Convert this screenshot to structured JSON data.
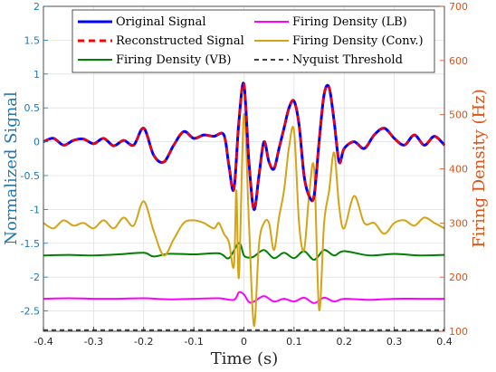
{
  "chart_data": {
    "type": "line",
    "xlabel": "Time (s)",
    "ylabel_left": "Normalized Signal",
    "ylabel_right": "Firing Density (Hz)",
    "xlim": [
      -0.4,
      0.4
    ],
    "ylim_left": [
      -2.8,
      2
    ],
    "ylim_right": [
      100,
      700
    ],
    "x_ticks": [
      "-0.4",
      "-0.3",
      "-0.2",
      "-0.1",
      "0",
      "0.1",
      "0.2",
      "0.3",
      "0.4"
    ],
    "y_ticks_left": [
      "2",
      "1.5",
      "1",
      "0.5",
      "0",
      "-0.5",
      "-1",
      "-1.5",
      "-2",
      "-2.5"
    ],
    "y_ticks_right": [
      "700",
      "600",
      "500",
      "400",
      "300",
      "200",
      "100"
    ],
    "grid": true,
    "legend_position": "top",
    "colors": {
      "left_axis": "#1f77b4",
      "right_axis": "#d9541a",
      "original": "#0000ff",
      "reconstructed": "#ff0000",
      "vb": "#008000",
      "lb": "#ff00ff",
      "conv": "#d4a316",
      "nyquist": "#404040"
    },
    "series": [
      {
        "name": "Original Signal",
        "axis": "left",
        "x": [
          -0.4,
          -0.38,
          -0.36,
          -0.34,
          -0.32,
          -0.3,
          -0.28,
          -0.26,
          -0.24,
          -0.22,
          -0.2,
          -0.18,
          -0.16,
          -0.14,
          -0.12,
          -0.1,
          -0.08,
          -0.06,
          -0.04,
          -0.03,
          -0.02,
          -0.01,
          0,
          0.01,
          0.02,
          0.03,
          0.04,
          0.05,
          0.06,
          0.07,
          0.08,
          0.09,
          0.1,
          0.11,
          0.12,
          0.13,
          0.14,
          0.15,
          0.16,
          0.17,
          0.18,
          0.19,
          0.2,
          0.22,
          0.24,
          0.26,
          0.28,
          0.3,
          0.32,
          0.34,
          0.36,
          0.38,
          0.4
        ],
        "y": [
          0,
          0.05,
          -0.05,
          0.02,
          0.04,
          -0.03,
          0.05,
          -0.06,
          0.02,
          -0.05,
          0.2,
          -0.2,
          -0.3,
          -0.05,
          0.15,
          0.05,
          0.1,
          0.08,
          0.1,
          -0.35,
          -0.7,
          0.3,
          0.85,
          -0.3,
          -1.0,
          -0.5,
          0,
          -0.3,
          -0.4,
          -0.1,
          0.2,
          0.5,
          0.6,
          0.25,
          -0.5,
          -0.8,
          -0.8,
          0,
          0.7,
          0.8,
          0.3,
          -0.3,
          -0.1,
          0,
          -0.1,
          0.1,
          0.2,
          0.05,
          -0.05,
          0.1,
          -0.05,
          0.08,
          -0.05
        ]
      },
      {
        "name": "Reconstructed Signal",
        "axis": "left",
        "x": [
          -0.4,
          -0.38,
          -0.36,
          -0.34,
          -0.32,
          -0.3,
          -0.28,
          -0.26,
          -0.24,
          -0.22,
          -0.2,
          -0.18,
          -0.16,
          -0.14,
          -0.12,
          -0.1,
          -0.08,
          -0.06,
          -0.04,
          -0.03,
          -0.02,
          -0.01,
          0,
          0.01,
          0.02,
          0.03,
          0.04,
          0.05,
          0.06,
          0.07,
          0.08,
          0.09,
          0.1,
          0.11,
          0.12,
          0.13,
          0.14,
          0.15,
          0.16,
          0.17,
          0.18,
          0.19,
          0.2,
          0.22,
          0.24,
          0.26,
          0.28,
          0.3,
          0.32,
          0.34,
          0.36,
          0.38,
          0.4
        ],
        "y": [
          0,
          0.05,
          -0.05,
          0.02,
          0.04,
          -0.03,
          0.05,
          -0.06,
          0.02,
          -0.05,
          0.2,
          -0.2,
          -0.3,
          -0.05,
          0.15,
          0.05,
          0.1,
          0.08,
          0.1,
          -0.35,
          -0.7,
          0.3,
          0.85,
          -0.3,
          -1.0,
          -0.5,
          0,
          -0.3,
          -0.4,
          -0.1,
          0.2,
          0.5,
          0.6,
          0.25,
          -0.5,
          -0.8,
          -0.8,
          0,
          0.7,
          0.8,
          0.3,
          -0.3,
          -0.1,
          0,
          -0.1,
          0.1,
          0.2,
          0.05,
          -0.05,
          0.1,
          -0.05,
          0.08,
          -0.05
        ]
      },
      {
        "name": "Firing Density (VB)",
        "axis": "right",
        "x": [
          -0.4,
          -0.35,
          -0.3,
          -0.25,
          -0.2,
          -0.18,
          -0.15,
          -0.1,
          -0.05,
          -0.03,
          -0.01,
          0,
          0.01,
          0.02,
          0.04,
          0.06,
          0.08,
          0.1,
          0.12,
          0.14,
          0.16,
          0.18,
          0.2,
          0.25,
          0.3,
          0.35,
          0.4
        ],
        "y": [
          240,
          241,
          240,
          242,
          245,
          238,
          243,
          242,
          244,
          235,
          263,
          240,
          236,
          238,
          250,
          235,
          245,
          235,
          248,
          232,
          250,
          240,
          248,
          240,
          243,
          240,
          241
        ]
      },
      {
        "name": "Firing Density (LB)",
        "axis": "right",
        "x": [
          -0.4,
          -0.35,
          -0.3,
          -0.25,
          -0.2,
          -0.15,
          -0.1,
          -0.05,
          -0.02,
          -0.01,
          0,
          0.01,
          0.02,
          0.04,
          0.06,
          0.08,
          0.1,
          0.12,
          0.14,
          0.16,
          0.18,
          0.2,
          0.25,
          0.3,
          0.35,
          0.4
        ],
        "y": [
          160,
          161,
          160,
          160,
          161,
          159,
          160,
          161,
          158,
          172,
          168,
          154,
          155,
          165,
          155,
          160,
          155,
          162,
          152,
          162,
          155,
          160,
          158,
          160,
          160,
          160
        ]
      },
      {
        "name": "Firing Density (Conv.)",
        "axis": "right",
        "x": [
          -0.4,
          -0.38,
          -0.36,
          -0.34,
          -0.32,
          -0.3,
          -0.28,
          -0.26,
          -0.24,
          -0.22,
          -0.2,
          -0.18,
          -0.16,
          -0.14,
          -0.12,
          -0.1,
          -0.08,
          -0.06,
          -0.05,
          -0.04,
          -0.03,
          -0.02,
          -0.015,
          -0.01,
          0,
          0.01,
          0.02,
          0.03,
          0.04,
          0.05,
          0.06,
          0.07,
          0.08,
          0.09,
          0.1,
          0.11,
          0.12,
          0.13,
          0.14,
          0.15,
          0.16,
          0.17,
          0.18,
          0.19,
          0.2,
          0.22,
          0.24,
          0.26,
          0.28,
          0.3,
          0.32,
          0.34,
          0.36,
          0.38,
          0.4
        ],
        "y": [
          300,
          290,
          305,
          295,
          300,
          290,
          305,
          290,
          310,
          295,
          340,
          285,
          240,
          270,
          300,
          305,
          300,
          290,
          300,
          280,
          265,
          220,
          360,
          200,
          500,
          300,
          110,
          260,
          300,
          300,
          250,
          310,
          360,
          440,
          470,
          300,
          250,
          350,
          400,
          140,
          300,
          360,
          430,
          330,
          290,
          350,
          300,
          300,
          280,
          300,
          305,
          295,
          310,
          300,
          290
        ]
      },
      {
        "name": "Nyquist Threshold",
        "axis": "right",
        "dashed": true,
        "x": [
          -0.4,
          0.4
        ],
        "y": [
          102,
          102
        ]
      }
    ]
  }
}
